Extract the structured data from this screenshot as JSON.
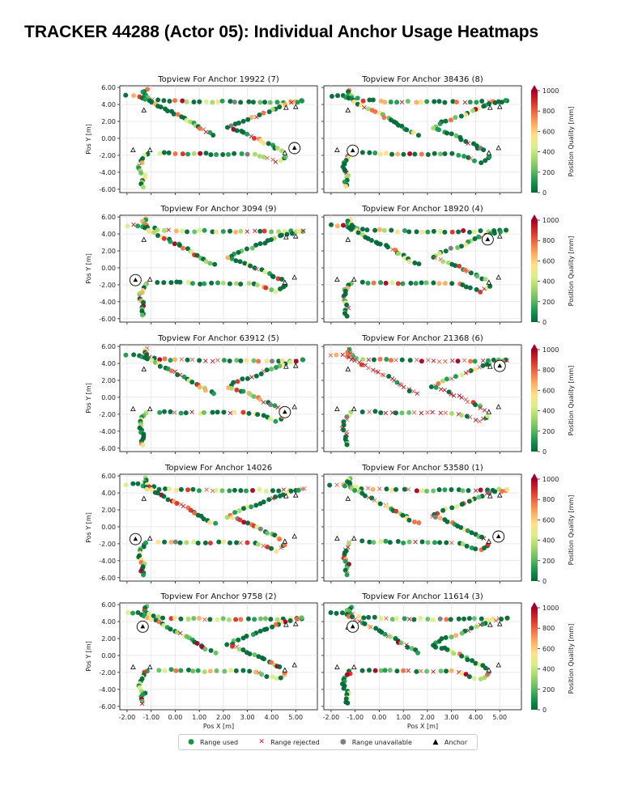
{
  "page": {
    "title": "TRACKER 44288 (Actor 05): Individual Anchor Usage Heatmaps"
  },
  "colors": {
    "used": "#1a9641",
    "rejected": "#d7191c",
    "unavailable": "#808080",
    "anchor": "#000000",
    "colormap": [
      "#006837",
      "#1a9850",
      "#66bd63",
      "#a6d96a",
      "#d9ef8b",
      "#fee08b",
      "#fdae61",
      "#f46d43",
      "#d73027",
      "#a50026"
    ]
  },
  "axis": {
    "xlabel": "Pos X [m]",
    "ylabel": "Pos Y [m]",
    "xticks": [
      "-2.00",
      "-1.00",
      "0.00",
      "1.00",
      "2.00",
      "3.00",
      "4.00",
      "5.00"
    ],
    "yticks": [
      "6.00",
      "4.00",
      "2.00",
      "0.00",
      "-2.00",
      "-4.00",
      "-6.00"
    ]
  },
  "colorbar": {
    "label": "Position Quality [mm]",
    "ticks": [
      "1000",
      "800",
      "600",
      "400",
      "200",
      "0"
    ]
  },
  "legend": {
    "used": "Range used",
    "rejected": "Range rejected",
    "unavailable": "Range unavailable",
    "anchor": "Anchor"
  },
  "chart_data": [
    {
      "type": "scatter",
      "title": "Topview For Anchor 19922 (7)",
      "xlabel": "",
      "ylabel": "Pos Y [m]",
      "xlim": [
        -2.3,
        5.9
      ],
      "ylim": [
        -6.4,
        6.2
      ],
      "highlight_anchor": [
        4.95,
        -1.15
      ],
      "rejected_frac": 0.06
    },
    {
      "type": "scatter",
      "title": "Topview For Anchor 38436 (8)",
      "xlabel": "",
      "ylabel": "",
      "xlim": [
        -2.3,
        5.9
      ],
      "ylim": [
        -6.4,
        6.2
      ],
      "highlight_anchor": [
        -1.1,
        -1.45
      ],
      "rejected_frac": 0.05
    },
    {
      "type": "scatter",
      "title": "Topview For Anchor 3094 (9)",
      "xlabel": "",
      "ylabel": "Pos Y [m]",
      "xlim": [
        -2.3,
        5.9
      ],
      "ylim": [
        -6.4,
        6.2
      ],
      "highlight_anchor": [
        -1.65,
        -1.45
      ],
      "rejected_frac": 0.06
    },
    {
      "type": "scatter",
      "title": "Topview For Anchor 18920 (4)",
      "xlabel": "",
      "ylabel": "",
      "xlim": [
        -2.3,
        5.9
      ],
      "ylim": [
        -6.4,
        6.2
      ],
      "highlight_anchor": [
        4.5,
        3.35
      ],
      "rejected_frac": 0.05
    },
    {
      "type": "scatter",
      "title": "Topview For Anchor 63912 (5)",
      "xlabel": "",
      "ylabel": "Pos Y [m]",
      "xlim": [
        -2.3,
        5.9
      ],
      "ylim": [
        -6.4,
        6.2
      ],
      "highlight_anchor": [
        4.55,
        -1.75
      ],
      "rejected_frac": 0.1
    },
    {
      "type": "scatter",
      "title": "Topview For Anchor 21368 (6)",
      "xlabel": "",
      "ylabel": "",
      "xlim": [
        -2.3,
        5.9
      ],
      "ylim": [
        -6.4,
        6.2
      ],
      "highlight_anchor": [
        5.0,
        3.7
      ],
      "rejected_frac": 0.5
    },
    {
      "type": "scatter",
      "title": "Topview For Anchor 14026",
      "xlabel": "",
      "ylabel": "Pos Y [m]",
      "xlim": [
        -2.3,
        5.9
      ],
      "ylim": [
        -6.4,
        6.2
      ],
      "highlight_anchor": [
        -1.65,
        -1.45
      ],
      "rejected_frac": 0.04
    },
    {
      "type": "scatter",
      "title": "Topview For Anchor 53580 (1)",
      "xlabel": "",
      "ylabel": "",
      "xlim": [
        -2.3,
        5.9
      ],
      "ylim": [
        -6.4,
        6.2
      ],
      "highlight_anchor": [
        4.95,
        -1.15
      ],
      "rejected_frac": 0.12
    },
    {
      "type": "scatter",
      "title": "Topview For Anchor 9758 (2)",
      "xlabel": "Pos X [m]",
      "ylabel": "Pos Y [m]",
      "xlim": [
        -2.3,
        5.9
      ],
      "ylim": [
        -6.4,
        6.2
      ],
      "highlight_anchor": [
        -1.35,
        3.4
      ],
      "rejected_frac": 0.05
    },
    {
      "type": "scatter",
      "title": "Topview For Anchor 11614 (3)",
      "xlabel": "Pos X [m]",
      "ylabel": "",
      "xlim": [
        -2.3,
        5.9
      ],
      "ylim": [
        -6.4,
        6.2
      ],
      "highlight_anchor": [
        -1.1,
        3.4
      ],
      "rejected_frac": 0.1
    }
  ]
}
